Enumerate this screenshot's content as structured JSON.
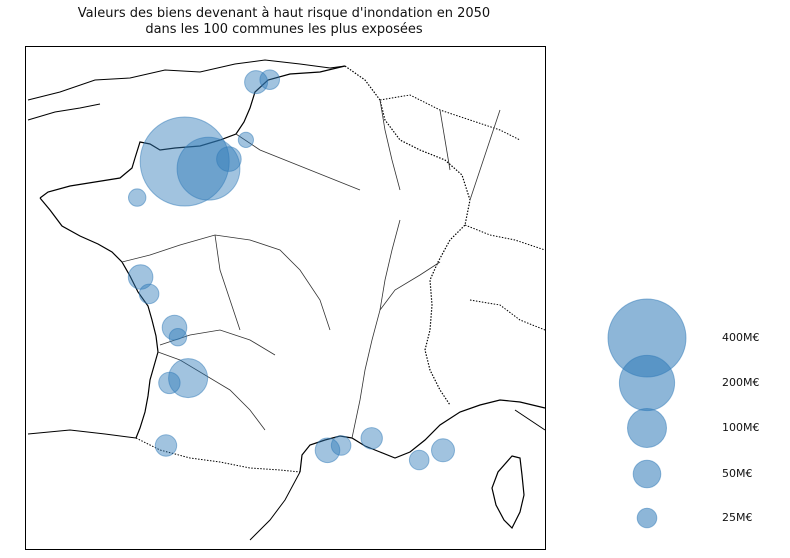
{
  "title_line1": "Valeurs des biens devenant à haut risque d'inondation en 2050",
  "title_line2": "dans les 100 communes les plus exposées",
  "colors": {
    "bubble_fill": "#2f7ab8",
    "bubble_fill_opacity": 0.45,
    "coast": "#000000",
    "border": "#000000",
    "river": "#333333",
    "map_border": "#000000"
  },
  "legend": [
    {
      "label": "400M€",
      "value": 400
    },
    {
      "label": "200M€",
      "value": 200
    },
    {
      "label": "100M€",
      "value": 100
    },
    {
      "label": "50M€",
      "value": 50
    },
    {
      "label": "25M€",
      "value": 25
    }
  ],
  "chart_data": {
    "type": "scatter",
    "subtype": "bubble-map",
    "title": "Valeurs des biens devenant à haut risque d'inondation en 2050 dans les 100 communes les plus exposées",
    "unit": "M€",
    "points": [
      {
        "lon": 1.2,
        "lat": 51.0,
        "value": 35
      },
      {
        "lon": 1.6,
        "lat": 51.05,
        "value": 25
      },
      {
        "lon": 0.9,
        "lat": 49.8,
        "value": 15
      },
      {
        "lon": -0.9,
        "lat": 49.35,
        "value": 520
      },
      {
        "lon": -0.2,
        "lat": 49.2,
        "value": 260
      },
      {
        "lon": 0.4,
        "lat": 49.4,
        "value": 40
      },
      {
        "lon": -2.3,
        "lat": 48.6,
        "value": 20
      },
      {
        "lon": -2.2,
        "lat": 46.95,
        "value": 40
      },
      {
        "lon": -1.95,
        "lat": 46.6,
        "value": 25
      },
      {
        "lon": -1.2,
        "lat": 45.9,
        "value": 40
      },
      {
        "lon": -1.1,
        "lat": 45.7,
        "value": 20
      },
      {
        "lon": -0.8,
        "lat": 44.85,
        "value": 100
      },
      {
        "lon": -1.35,
        "lat": 44.75,
        "value": 30
      },
      {
        "lon": -1.45,
        "lat": 43.45,
        "value": 30
      },
      {
        "lon": 3.3,
        "lat": 43.35,
        "value": 40
      },
      {
        "lon": 3.7,
        "lat": 43.45,
        "value": 25
      },
      {
        "lon": 4.6,
        "lat": 43.6,
        "value": 30
      },
      {
        "lon": 6.0,
        "lat": 43.15,
        "value": 25
      },
      {
        "lon": 6.7,
        "lat": 43.35,
        "value": 35
      }
    ]
  }
}
